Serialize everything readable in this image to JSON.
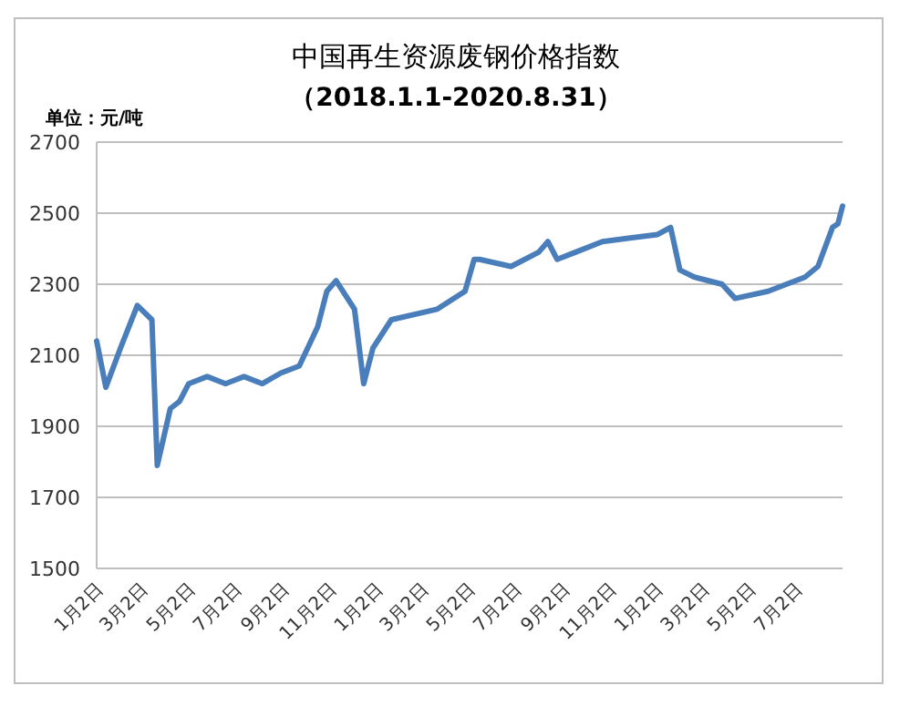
{
  "chart_data": {
    "type": "line",
    "title": "中国再生资源废钢价格指数",
    "subtitle": "（2018.1.1-2020.8.31）",
    "ylabel": "单位：元/吨",
    "x": [
      "2018-01-02",
      "2018-01-14",
      "2018-02-02",
      "2018-02-24",
      "2018-03-15",
      "2018-03-22",
      "2018-04-08",
      "2018-04-20",
      "2018-05-02",
      "2018-05-26",
      "2018-06-19",
      "2018-07-13",
      "2018-08-06",
      "2018-08-30",
      "2018-09-23",
      "2018-10-17",
      "2018-10-29",
      "2018-11-10",
      "2018-12-04",
      "2018-12-16",
      "2018-12-28",
      "2019-01-21",
      "2019-03-22",
      "2019-04-27",
      "2019-05-09",
      "2019-05-16",
      "2019-06-26",
      "2019-08-01",
      "2019-08-13",
      "2019-08-25",
      "2019-09-18",
      "2019-10-23",
      "2019-11-28",
      "2020-01-03",
      "2020-01-20",
      "2020-02-01",
      "2020-02-20",
      "2020-03-27",
      "2020-04-13",
      "2020-05-26",
      "2020-07-13",
      "2020-07-30",
      "2020-08-18",
      "2020-08-25",
      "2020-08-31"
    ],
    "series": [
      {
        "color": "#4a7ebb",
        "values": [
          2140,
          2010,
          2120,
          2240,
          2200,
          1790,
          1950,
          1970,
          2020,
          2040,
          2020,
          2040,
          2020,
          2050,
          2070,
          2180,
          2280,
          2310,
          2230,
          2020,
          2120,
          2200,
          2230,
          2280,
          2370,
          2370,
          2350,
          2390,
          2420,
          2370,
          2390,
          2420,
          2430,
          2440,
          2460,
          2340,
          2320,
          2300,
          2260,
          2280,
          2320,
          2350,
          2460,
          2470,
          2520
        ]
      }
    ],
    "xlim": [
      "2018-01-02",
      "2020-08-31"
    ],
    "xticks": [
      {
        "value": "2018-01-02",
        "label": "1月2日"
      },
      {
        "value": "2018-03-02",
        "label": "3月2日"
      },
      {
        "value": "2018-05-02",
        "label": "5月2日"
      },
      {
        "value": "2018-07-02",
        "label": "7月2日"
      },
      {
        "value": "2018-09-02",
        "label": "9月2日"
      },
      {
        "value": "2018-11-02",
        "label": "11月2日"
      },
      {
        "value": "2019-01-02",
        "label": "1月2日"
      },
      {
        "value": "2019-03-02",
        "label": "3月2日"
      },
      {
        "value": "2019-05-02",
        "label": "5月2日"
      },
      {
        "value": "2019-07-02",
        "label": "7月2日"
      },
      {
        "value": "2019-09-02",
        "label": "9月2日"
      },
      {
        "value": "2019-11-02",
        "label": "11月2日"
      },
      {
        "value": "2020-01-02",
        "label": "1月2日"
      },
      {
        "value": "2020-03-02",
        "label": "3月2日"
      },
      {
        "value": "2020-05-02",
        "label": "5月2日"
      },
      {
        "value": "2020-07-02",
        "label": "7月2日"
      }
    ],
    "ylim": [
      1500,
      2700
    ],
    "yticks": [
      1500,
      1700,
      1900,
      2100,
      2300,
      2500,
      2700
    ],
    "grid": "y"
  }
}
